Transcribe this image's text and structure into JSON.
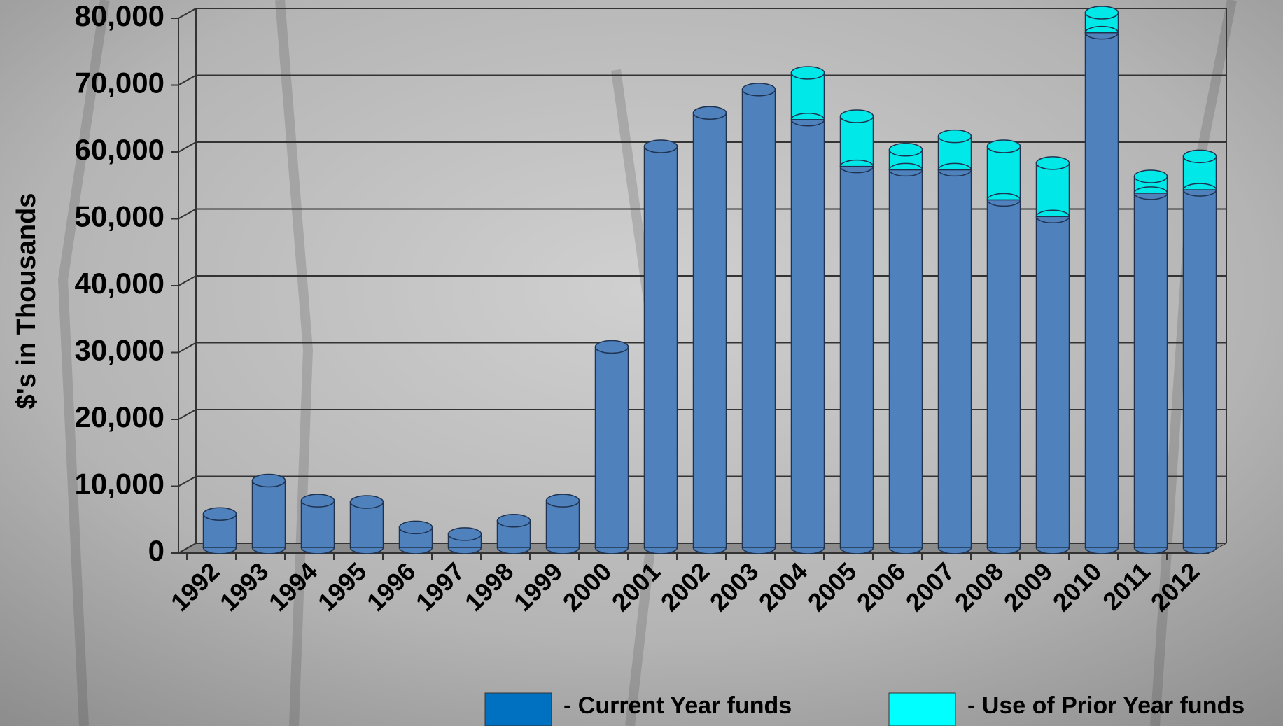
{
  "chart_data": {
    "type": "bar",
    "stacked": true,
    "y_label": "$'s in Thousands",
    "categories": [
      "1992",
      "1993",
      "1994",
      "1995",
      "1996",
      "1997",
      "1998",
      "1999",
      "2000",
      "2001",
      "2002",
      "2003",
      "2004",
      "2005",
      "2006",
      "2007",
      "2008",
      "2009",
      "2010",
      "2011",
      "2012"
    ],
    "series": [
      {
        "name": "- Current Year funds",
        "color": "#4f81bd",
        "legend_color": "#0070c0",
        "values": [
          5000,
          10000,
          7000,
          6800,
          3000,
          2000,
          4000,
          7000,
          30000,
          60000,
          65000,
          68500,
          64000,
          57000,
          56500,
          56500,
          52000,
          49500,
          77000,
          53000,
          53500
        ]
      },
      {
        "name": "- Use of Prior Year funds",
        "color": "#00e8e8",
        "legend_color": "#00ffff",
        "values": [
          0,
          0,
          0,
          0,
          0,
          0,
          0,
          0,
          0,
          0,
          0,
          0,
          7000,
          7500,
          3000,
          5000,
          8000,
          8000,
          3000,
          2500,
          5000
        ]
      }
    ],
    "ylim": [
      0,
      80000
    ],
    "yticks": [
      0,
      {
        "value": 10000,
        "label": "10,000"
      },
      {
        "value": 20000,
        "label": "20,000"
      },
      {
        "value": 30000,
        "label": "30,000"
      },
      {
        "value": 40000,
        "label": "40,000"
      },
      {
        "value": 50000,
        "label": "50,000"
      },
      {
        "value": 60000,
        "label": "60,000"
      },
      {
        "value": 70000,
        "label": "70,000"
      },
      {
        "value": 80000,
        "label": "80,000"
      }
    ],
    "grid": true
  }
}
